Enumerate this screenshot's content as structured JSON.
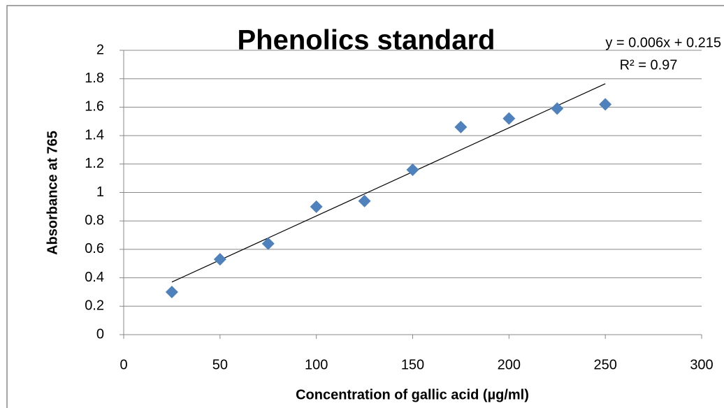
{
  "chart_data": {
    "type": "scatter",
    "title": "Phenolics standard",
    "xlabel": "Concentration of gallic acid (µg/ml)",
    "ylabel": "Absorbance at 765",
    "annotations": [
      "y = 0.006x + 0.215",
      "R² = 0.97"
    ],
    "series": [
      {
        "color": "#4f81bd",
        "x": [
          25,
          50,
          75,
          100,
          125,
          150,
          175,
          200,
          225,
          250
        ],
        "values": [
          0.3,
          0.53,
          0.64,
          0.9,
          0.94,
          1.16,
          1.46,
          1.52,
          1.59,
          1.62
        ]
      }
    ],
    "trendline": {
      "color": "#000000",
      "x": [
        25,
        250
      ],
      "values": [
        0.37,
        1.765
      ]
    },
    "xlim": [
      0,
      300
    ],
    "xticks": [
      0,
      50,
      100,
      150,
      200,
      250,
      300
    ],
    "ylim": [
      0,
      2
    ],
    "yticks": [
      0,
      0.2,
      0.4,
      0.6,
      0.8,
      1,
      1.2,
      1.4,
      1.6,
      1.8,
      2
    ],
    "grid": true
  }
}
